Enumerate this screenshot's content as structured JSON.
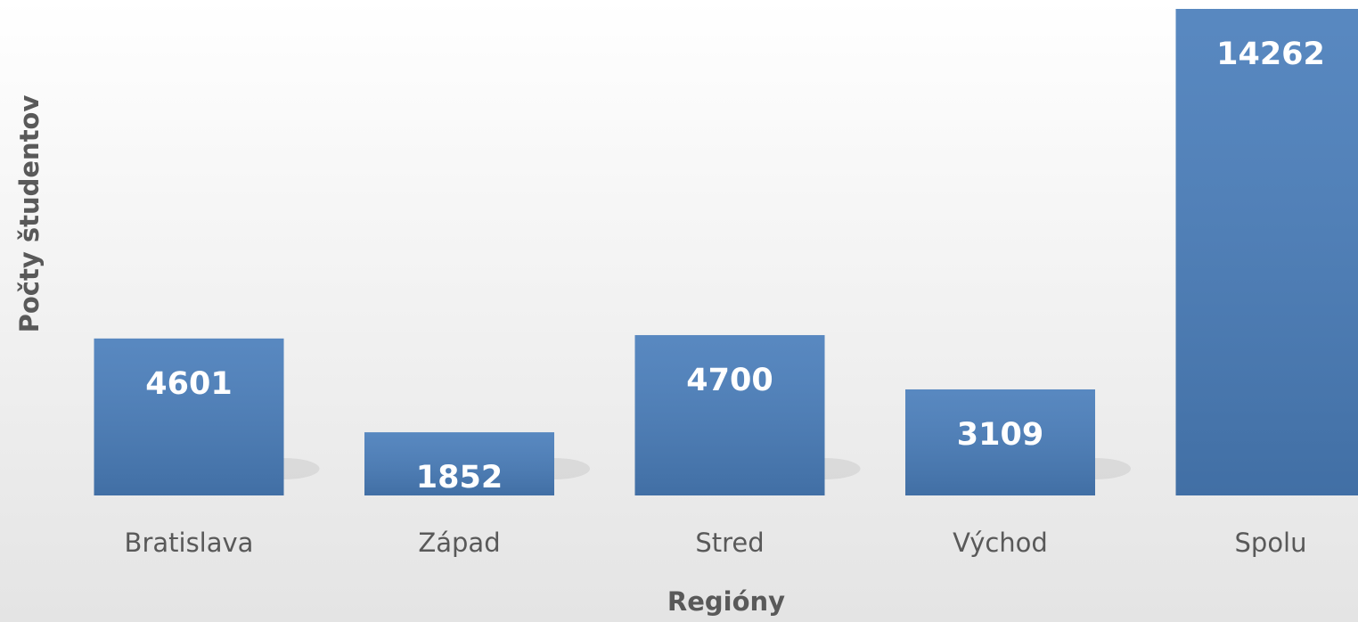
{
  "chart_data": {
    "type": "bar",
    "x_label": "Regióny",
    "y_label": "Počty študentov",
    "categories": [
      "Bratislava",
      "Západ",
      "Stred",
      "Východ",
      "Spolu"
    ],
    "values": [
      4601,
      1852,
      4700,
      3109,
      14262
    ],
    "color": "#4a7ebb"
  }
}
